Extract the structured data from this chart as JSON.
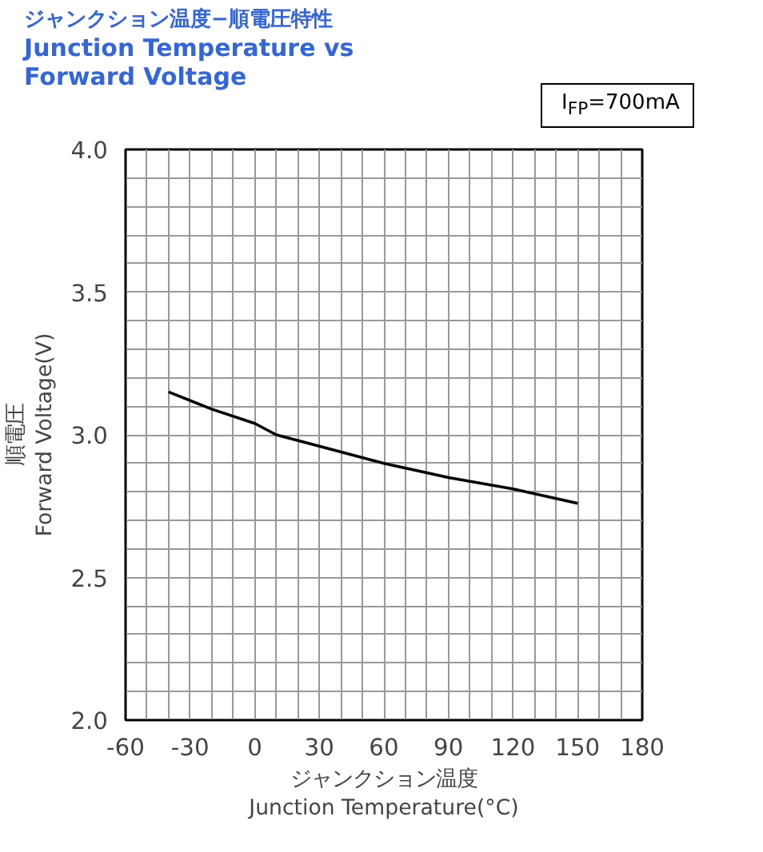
{
  "chart_data": {
    "type": "line",
    "title": "ジャンクション温度−順電圧特性",
    "subtitle": "Junction Temperature vs\nForward Voltage",
    "xlabel": "ジャンクション温度\nJunction Temperature(°C)",
    "ylabel": "順電圧\nForward Voltage(V)",
    "annotations": [
      "I$_{FP}$=700mA"
    ],
    "x": [
      -40,
      -20,
      0,
      10,
      30,
      60,
      90,
      120,
      150
    ],
    "series": [
      {
        "color": "#000000",
        "values": [
          3.15,
          3.09,
          3.04,
          3.0,
          2.96,
          2.9,
          2.85,
          2.81,
          2.76
        ]
      }
    ],
    "xlim": [
      -60,
      180
    ],
    "ylim": [
      2.0,
      4.0
    ],
    "xticks": [
      -60,
      {
        "value": -50,
        "label": null
      },
      {
        "value": -40,
        "label": null
      },
      -30,
      {
        "value": -20,
        "label": null
      },
      {
        "value": -10,
        "label": null
      },
      0,
      {
        "value": 10,
        "label": null
      },
      {
        "value": 20,
        "label": null
      },
      30,
      {
        "value": 40,
        "label": null
      },
      {
        "value": 50,
        "label": null
      },
      60,
      {
        "value": 70,
        "label": null
      },
      {
        "value": 80,
        "label": null
      },
      90,
      {
        "value": 100,
        "label": null
      },
      {
        "value": 110,
        "label": null
      },
      120,
      {
        "value": 130,
        "label": null
      },
      {
        "value": 140,
        "label": null
      },
      150,
      {
        "value": 160,
        "label": null
      },
      {
        "value": 170,
        "label": null
      },
      180
    ],
    "yticks": [
      {
        "value": 2.0,
        "label": "2.0"
      },
      {
        "value": 2.1,
        "label": null
      },
      {
        "value": 2.2,
        "label": null
      },
      {
        "value": 2.3,
        "label": null
      },
      {
        "value": 2.4,
        "label": null
      },
      2.5,
      {
        "value": 2.6,
        "label": null
      },
      {
        "value": 2.7,
        "label": null
      },
      {
        "value": 2.8,
        "label": null
      },
      {
        "value": 2.9,
        "label": null
      },
      {
        "value": 3.0,
        "label": "3.0"
      },
      {
        "value": 3.1,
        "label": null
      },
      {
        "value": 3.2,
        "label": null
      },
      {
        "value": 3.3,
        "label": null
      },
      {
        "value": 3.4,
        "label": null
      },
      3.5,
      {
        "value": 3.6,
        "label": null
      },
      {
        "value": 3.7,
        "label": null
      },
      {
        "value": 3.8,
        "label": null
      },
      {
        "value": 3.9,
        "label": null
      },
      {
        "value": 4.0,
        "label": "4.0"
      }
    ],
    "grid": true,
    "line_style": "solid",
    "marker": "none"
  }
}
